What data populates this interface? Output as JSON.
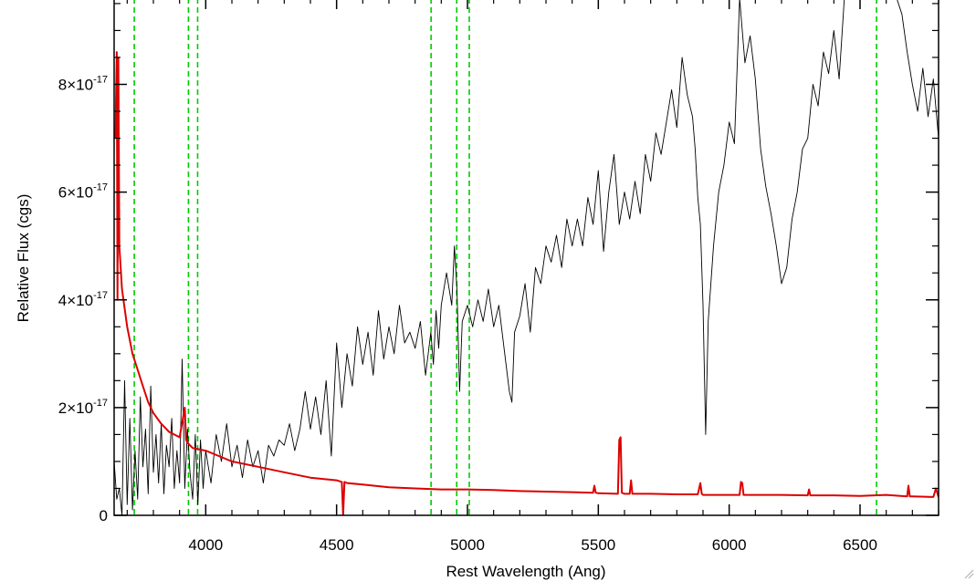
{
  "chart_data": {
    "type": "line",
    "title": "",
    "xlabel": "Rest Wavelength (Ang)",
    "ylabel": "Relative Flux (cgs)",
    "xlim": [
      3650,
      6800
    ],
    "ylim": [
      0,
      9.6e-17
    ],
    "x_ticks": [
      4000,
      4500,
      5000,
      5500,
      6000,
      6500
    ],
    "y_ticks": [
      {
        "value": 0,
        "label": "0"
      },
      {
        "value": 2e-17,
        "mant": "2",
        "exp": "-17"
      },
      {
        "value": 4e-17,
        "mant": "4",
        "exp": "-17"
      },
      {
        "value": 6e-17,
        "mant": "6",
        "exp": "-17"
      },
      {
        "value": 8e-17,
        "mant": "8",
        "exp": "-17"
      }
    ],
    "grid": false,
    "vlines": [
      3727,
      3934,
      3969,
      4861,
      4959,
      5007,
      6563
    ],
    "colors": {
      "spectrum": "#000000",
      "error": "#dd0000",
      "vline": "#00cc00"
    },
    "series": [
      {
        "role": "spectrum",
        "x": [
          3650,
          3660,
          3670,
          3680,
          3690,
          3700,
          3710,
          3720,
          3730,
          3740,
          3750,
          3760,
          3770,
          3780,
          3790,
          3800,
          3810,
          3820,
          3830,
          3840,
          3850,
          3860,
          3870,
          3880,
          3890,
          3900,
          3910,
          3920,
          3930,
          3940,
          3950,
          3960,
          3970,
          3980,
          3990,
          4000,
          4020,
          4040,
          4060,
          4080,
          4100,
          4120,
          4140,
          4160,
          4180,
          4200,
          4220,
          4240,
          4260,
          4280,
          4300,
          4320,
          4340,
          4360,
          4380,
          4400,
          4420,
          4440,
          4460,
          4480,
          4500,
          4520,
          4540,
          4560,
          4580,
          4600,
          4620,
          4640,
          4660,
          4680,
          4700,
          4720,
          4740,
          4760,
          4780,
          4800,
          4820,
          4840,
          4860,
          4870,
          4880,
          4890,
          4900,
          4920,
          4940,
          4950,
          4960,
          4970,
          4980,
          5000,
          5020,
          5040,
          5060,
          5080,
          5100,
          5120,
          5140,
          5160,
          5170,
          5180,
          5200,
          5220,
          5240,
          5260,
          5280,
          5300,
          5320,
          5340,
          5360,
          5380,
          5400,
          5420,
          5440,
          5460,
          5480,
          5500,
          5520,
          5540,
          5560,
          5580,
          5600,
          5620,
          5640,
          5660,
          5680,
          5700,
          5720,
          5740,
          5760,
          5780,
          5800,
          5820,
          5840,
          5860,
          5870,
          5880,
          5890,
          5900,
          5910,
          5920,
          5940,
          5960,
          5980,
          6000,
          6020,
          6040,
          6060,
          6080,
          6100,
          6120,
          6140,
          6160,
          6180,
          6200,
          6220,
          6240,
          6260,
          6280,
          6300,
          6320,
          6340,
          6360,
          6380,
          6400,
          6420,
          6440,
          6460,
          6480,
          6500,
          6520,
          6540,
          6560,
          6580,
          6600,
          6620,
          6640,
          6660,
          6680,
          6700,
          6720,
          6740,
          6760,
          6780,
          6800
        ],
        "y": [
          1e-17,
          3e-18,
          5e-18,
          0.0,
          2.5e-17,
          2e-18,
          1.8e-17,
          1e-18,
          1.2e-17,
          3e-18,
          2.2e-17,
          9e-18,
          1.6e-17,
          4e-18,
          2.4e-17,
          8e-18,
          1.5e-17,
          6e-18,
          1.7e-17,
          4e-18,
          1.3e-17,
          9e-18,
          1.8e-17,
          5e-18,
          1.2e-17,
          6e-18,
          2.9e-17,
          5e-18,
          1.6e-17,
          8e-18,
          3e-18,
          1.5e-17,
          2e-18,
          1.4e-17,
          5e-18,
          1.2e-17,
          6e-18,
          1.5e-17,
          1e-17,
          1.7e-17,
          9e-18,
          1.3e-17,
          7e-18,
          1.4e-17,
          9e-18,
          1.2e-17,
          6e-18,
          1.3e-17,
          1.1e-17,
          1.4e-17,
          1.3e-17,
          1.7e-17,
          1.2e-17,
          1.6e-17,
          2.3e-17,
          1.6e-17,
          2.2e-17,
          1.5e-17,
          2.5e-17,
          1.1e-17,
          3.2e-17,
          2e-17,
          3e-17,
          2.4e-17,
          3.5e-17,
          2.8e-17,
          3.4e-17,
          2.6e-17,
          3.8e-17,
          2.9e-17,
          3.5e-17,
          3e-17,
          3.9e-17,
          3.2e-17,
          3.4e-17,
          3.1e-17,
          3.6e-17,
          2.6e-17,
          3.4e-17,
          2.8e-17,
          3.8e-17,
          3.1e-17,
          3.9e-17,
          4.5e-17,
          3.9e-17,
          5e-17,
          4.2e-17,
          2.3e-17,
          3.6e-17,
          3.9e-17,
          3.5e-17,
          4e-17,
          3.6e-17,
          4.2e-17,
          3.5e-17,
          3.9e-17,
          3.1e-17,
          2.3e-17,
          2.1e-17,
          3.4e-17,
          3.7e-17,
          4.3e-17,
          3.4e-17,
          4.6e-17,
          4.3e-17,
          5e-17,
          4.7e-17,
          5.2e-17,
          4.6e-17,
          5.5e-17,
          5e-17,
          5.5e-17,
          5e-17,
          5.9e-17,
          5.4e-17,
          6.4e-17,
          4.9e-17,
          6e-17,
          6.7e-17,
          5.4e-17,
          6e-17,
          5.5e-17,
          6.2e-17,
          5.6e-17,
          6.7e-17,
          6.2e-17,
          7.1e-17,
          6.7e-17,
          7.3e-17,
          7.9e-17,
          7.2e-17,
          8.5e-17,
          7.8e-17,
          7.4e-17,
          6.8e-17,
          5.9e-17,
          5.4e-17,
          3.9e-17,
          1.5e-17,
          3.6e-17,
          5e-17,
          6e-17,
          6.5e-17,
          7.3e-17,
          6.9e-17,
          9.6e-17,
          8.4e-17,
          8.9e-17,
          8.1e-17,
          6.8e-17,
          6.1e-17,
          5.6e-17,
          5e-17,
          4.3e-17,
          4.6e-17,
          5.5e-17,
          6e-17,
          6.8e-17,
          7e-17,
          8e-17,
          7.6e-17,
          8.6e-17,
          8.2e-17,
          9e-17,
          8.1e-17,
          9.6e-17,
          9.6e-17,
          9.6e-17,
          9.6e-17,
          9.6e-17,
          9.6e-17,
          9.6e-17,
          9.6e-17,
          9.6e-17,
          9.6e-17,
          9.6e-17,
          9.3e-17,
          8.6e-17,
          8e-17,
          7.5e-17,
          8.3e-17,
          7.4e-17,
          8.1e-17,
          7e-17
        ]
      },
      {
        "role": "error",
        "x": [
          3655,
          3660,
          3663,
          3666,
          3670,
          3680,
          3700,
          3720,
          3740,
          3760,
          3780,
          3800,
          3830,
          3860,
          3900,
          3920,
          3925,
          3930,
          3940,
          3950,
          4000,
          4050,
          4100,
          4200,
          4300,
          4400,
          4500,
          4520,
          4525,
          4530,
          4540,
          4600,
          4700,
          4800,
          4900,
          5000,
          5100,
          5200,
          5300,
          5400,
          5480,
          5485,
          5490,
          5500,
          5575,
          5580,
          5585,
          5590,
          5600,
          5620,
          5625,
          5630,
          5700,
          5800,
          5880,
          5890,
          5895,
          5900,
          6000,
          6040,
          6045,
          6050,
          6055,
          6100,
          6200,
          6300,
          6305,
          6310,
          6400,
          6500,
          6600,
          6680,
          6685,
          6690,
          6700,
          6780,
          6790,
          6800
        ],
        "y": [
          7e-17,
          8.6e-17,
          4e-17,
          8.5e-17,
          5e-17,
          4.2e-17,
          3.5e-17,
          3e-17,
          2.7e-17,
          2.4e-17,
          2.1e-17,
          1.9e-17,
          1.7e-17,
          1.55e-17,
          1.45e-17,
          2e-17,
          1.4e-17,
          1.35e-17,
          1.3e-17,
          1.25e-17,
          1.2e-17,
          1.1e-17,
          1e-17,
          9e-18,
          8e-18,
          7e-18,
          6.5e-18,
          6.2e-18,
          0.0,
          6.2e-18,
          6e-18,
          5.7e-18,
          5.2e-18,
          5e-18,
          4.8e-18,
          4.8e-18,
          4.7e-18,
          4.5e-18,
          4.4e-18,
          4.3e-18,
          4.2e-18,
          5.5e-18,
          4.2e-18,
          4.1e-18,
          4e-18,
          1.4e-17,
          1.45e-17,
          4.2e-18,
          4e-18,
          4e-18,
          6.5e-18,
          4e-18,
          4e-18,
          3.9e-18,
          3.9e-18,
          6e-18,
          4e-18,
          3.8e-18,
          3.8e-18,
          3.8e-18,
          6.2e-18,
          6e-18,
          3.8e-18,
          3.8e-18,
          3.8e-18,
          3.7e-18,
          4.8e-18,
          3.7e-18,
          3.7e-18,
          3.6e-18,
          3.8e-18,
          3.5e-18,
          5.5e-18,
          3.5e-18,
          3.5e-18,
          3.4e-18,
          5e-18,
          3.4e-18
        ]
      }
    ]
  }
}
